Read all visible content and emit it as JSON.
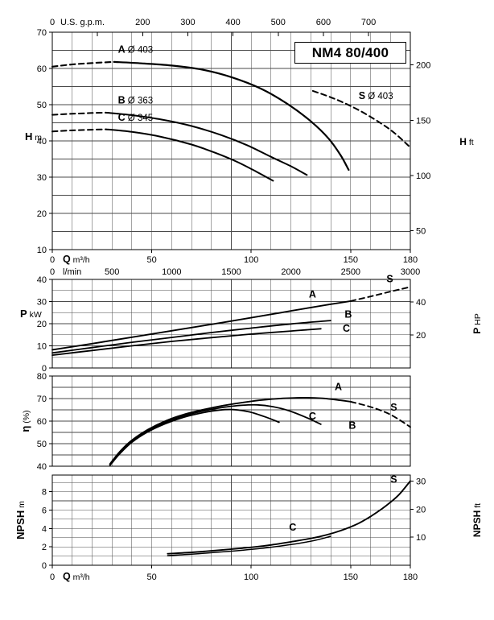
{
  "title": "NM4 80/400",
  "chart_data": [
    {
      "id": "head",
      "type": "line",
      "title": "NM4 80/400",
      "x_axis": {
        "label": "Q",
        "unit": "m³/h",
        "min": 0,
        "max": 180,
        "grid_step": 10,
        "tick_labels": [
          0,
          50,
          100,
          150,
          180
        ]
      },
      "x_axis_secondary": {
        "unit": "l/min",
        "per_unit": 0.06,
        "ticks": [
          0,
          500,
          1000,
          1500,
          2000,
          2500,
          3000
        ]
      },
      "x_axis_top": {
        "unit": "U.S. g.p.m.",
        "per_unit": 0.227125,
        "ticks": [
          0,
          100,
          200,
          300,
          400,
          500,
          600,
          700
        ],
        "labeled": [
          0,
          200,
          300,
          400,
          500,
          600,
          700
        ]
      },
      "y_axis": {
        "label": "H",
        "unit": "m",
        "min": 10,
        "max": 70,
        "grid_step": 5,
        "tick_labels": [
          10,
          20,
          30,
          40,
          50,
          60,
          70
        ]
      },
      "y_axis_right": {
        "label": "H",
        "unit": "ft",
        "per_unit": 0.3048,
        "ticks": [
          50,
          100,
          150,
          200
        ]
      },
      "series": [
        {
          "name": "A-dashed-lead",
          "dash": true,
          "width": 2.1,
          "points": [
            [
              0,
              60.5
            ],
            [
              10,
              61.1
            ],
            [
              20,
              61.5
            ],
            [
              31,
              61.8
            ]
          ]
        },
        {
          "name": "A",
          "dash": false,
          "width": 2.2,
          "points": [
            [
              31,
              61.8
            ],
            [
              45,
              61.4
            ],
            [
              60,
              60.8
            ],
            [
              75,
              59.7
            ],
            [
              90,
              57.6
            ],
            [
              105,
              54.4
            ],
            [
              118,
              50.3
            ],
            [
              130,
              45.4
            ],
            [
              139,
              40.6
            ],
            [
              145,
              36
            ],
            [
              149,
              32
            ]
          ]
        },
        {
          "name": "B-dashed-lead",
          "dash": true,
          "width": 2,
          "points": [
            [
              0,
              47.2
            ],
            [
              10,
              47.5
            ],
            [
              20,
              47.7
            ],
            [
              27,
              47.8
            ]
          ]
        },
        {
          "name": "B",
          "dash": false,
          "width": 2,
          "points": [
            [
              27,
              47.8
            ],
            [
              40,
              47.1
            ],
            [
              55,
              45.9
            ],
            [
              70,
              44.1
            ],
            [
              85,
              41.6
            ],
            [
              98,
              38.8
            ],
            [
              110,
              35.6
            ],
            [
              120,
              33
            ],
            [
              128,
              30.6
            ]
          ]
        },
        {
          "name": "C-dashed-lead",
          "dash": true,
          "width": 2,
          "points": [
            [
              0,
              42.6
            ],
            [
              10,
              42.9
            ],
            [
              20,
              43.1
            ],
            [
              27,
              43.2
            ]
          ]
        },
        {
          "name": "C",
          "dash": false,
          "width": 2,
          "points": [
            [
              27,
              43.2
            ],
            [
              40,
              42.5
            ],
            [
              55,
              41.1
            ],
            [
              70,
              39
            ],
            [
              82,
              36.7
            ],
            [
              93,
              34.2
            ],
            [
              103,
              31.4
            ],
            [
              111,
              29
            ]
          ]
        },
        {
          "name": "S-dashed",
          "dash": true,
          "width": 2,
          "points": [
            [
              131,
              53.8
            ],
            [
              142,
              51.6
            ],
            [
              153,
              48.8
            ],
            [
              164,
              45.3
            ],
            [
              172,
              42.2
            ],
            [
              180,
              38.2
            ]
          ]
        }
      ],
      "annotations": [
        {
          "prefix": "A",
          "text": " Ø 403",
          "q": 33,
          "v": 64.3
        },
        {
          "prefix": "B",
          "text": " Ø 363",
          "q": 33,
          "v": 50.3
        },
        {
          "prefix": "C",
          "text": " Ø 345",
          "q": 33,
          "v": 45.6
        },
        {
          "prefix": "S",
          "text": " Ø 403",
          "q": 154,
          "v": 51.6
        }
      ]
    },
    {
      "id": "power",
      "type": "line",
      "x_axis": {
        "min": 0,
        "max": 180,
        "grid_step": 10
      },
      "y_axis": {
        "label": "P",
        "unit": "kW",
        "min": 0,
        "max": 40,
        "grid_step": 5,
        "tick_labels": [
          0,
          10,
          20,
          30,
          40
        ]
      },
      "y_axis_right": {
        "label": "P",
        "unit": "HP",
        "per_unit": 0.7457,
        "ticks": [
          20,
          40
        ]
      },
      "series": [
        {
          "name": "A",
          "dash": false,
          "width": 1.9,
          "points": [
            [
              0,
              8.2
            ],
            [
              20,
              11
            ],
            [
              40,
              13.9
            ],
            [
              60,
              16.8
            ],
            [
              80,
              19.7
            ],
            [
              100,
              22.7
            ],
            [
              115,
              25
            ],
            [
              130,
              27.3
            ],
            [
              140,
              28.8
            ],
            [
              150,
              30.2
            ]
          ]
        },
        {
          "name": "S-dashed",
          "dash": true,
          "width": 1.9,
          "points": [
            [
              150,
              30.2
            ],
            [
              160,
              32.3
            ],
            [
              170,
              34.5
            ],
            [
              180,
              36.6
            ]
          ]
        },
        {
          "name": "B",
          "dash": false,
          "width": 1.8,
          "points": [
            [
              0,
              6.8
            ],
            [
              20,
              9.2
            ],
            [
              40,
              11.6
            ],
            [
              60,
              13.8
            ],
            [
              80,
              16
            ],
            [
              100,
              18
            ],
            [
              120,
              19.9
            ],
            [
              140,
              21.4
            ]
          ]
        },
        {
          "name": "C",
          "dash": false,
          "width": 1.8,
          "points": [
            [
              0,
              5.8
            ],
            [
              20,
              7.9
            ],
            [
              40,
              10
            ],
            [
              60,
              12
            ],
            [
              80,
              13.7
            ],
            [
              100,
              15.3
            ],
            [
              120,
              16.7
            ],
            [
              135,
              17.7
            ]
          ]
        }
      ],
      "annotations": [
        {
          "prefix": "A",
          "text": "",
          "q": 129,
          "v": 31.8
        },
        {
          "prefix": "B",
          "text": "",
          "q": 147,
          "v": 22.8
        },
        {
          "prefix": "C",
          "text": "",
          "q": 146,
          "v": 16.3
        },
        {
          "prefix": "S",
          "text": "",
          "q": 168,
          "v": 38.8
        }
      ]
    },
    {
      "id": "eff",
      "type": "line",
      "x_axis": {
        "min": 0,
        "max": 180,
        "grid_step": 10
      },
      "y_axis": {
        "label": "η",
        "unit": "(%)",
        "min": 40,
        "max": 80,
        "grid_step": 5,
        "tick_labels": [
          40,
          50,
          60,
          70,
          80
        ]
      },
      "series": [
        {
          "name": "A",
          "dash": false,
          "width": 1.9,
          "points": [
            [
              29,
              41
            ],
            [
              34,
              46.5
            ],
            [
              40,
              51.5
            ],
            [
              48,
              56.2
            ],
            [
              57,
              60.1
            ],
            [
              66,
              62.9
            ],
            [
              76,
              65.1
            ],
            [
              86,
              66.9
            ],
            [
              96,
              68.3
            ],
            [
              106,
              69.4
            ],
            [
              116,
              70.1
            ],
            [
              126,
              70.4
            ],
            [
              136,
              70.1
            ],
            [
              145,
              69.2
            ],
            [
              150,
              68.6
            ]
          ]
        },
        {
          "name": "S-dashed",
          "dash": true,
          "width": 1.9,
          "points": [
            [
              150,
              68.6
            ],
            [
              160,
              66.3
            ],
            [
              170,
              62.9
            ],
            [
              180,
              57.4
            ]
          ]
        },
        {
          "name": "B",
          "dash": false,
          "width": 1.8,
          "points": [
            [
              29,
              40.7
            ],
            [
              34,
              46
            ],
            [
              40,
              51
            ],
            [
              48,
              55.7
            ],
            [
              57,
              59.5
            ],
            [
              66,
              62.3
            ],
            [
              76,
              64.5
            ],
            [
              86,
              66.1
            ],
            [
              95,
              67
            ],
            [
              103,
              67.2
            ],
            [
              111,
              66.4
            ],
            [
              119,
              64.6
            ],
            [
              128,
              61.5
            ],
            [
              135,
              58.6
            ]
          ]
        },
        {
          "name": "C",
          "dash": false,
          "width": 1.8,
          "points": [
            [
              29,
              40.4
            ],
            [
              34,
              45.6
            ],
            [
              40,
              50.6
            ],
            [
              48,
              55.2
            ],
            [
              57,
              58.9
            ],
            [
              66,
              61.7
            ],
            [
              76,
              63.8
            ],
            [
              84,
              64.9
            ],
            [
              91,
              65.1
            ],
            [
              99,
              64.1
            ],
            [
              107,
              61.9
            ],
            [
              114,
              59.5
            ]
          ]
        }
      ],
      "annotations": [
        {
          "prefix": "A",
          "text": "",
          "q": 142,
          "v": 73.8
        },
        {
          "prefix": "C",
          "text": "",
          "q": 129,
          "v": 60.8
        },
        {
          "prefix": "B",
          "text": "",
          "q": 149,
          "v": 56.6
        },
        {
          "prefix": "S",
          "text": "",
          "q": 170,
          "v": 64.6
        }
      ]
    },
    {
      "id": "npsh",
      "type": "line",
      "x_axis": {
        "label": "Q",
        "unit": "m³/h",
        "min": 0,
        "max": 180,
        "grid_step": 10,
        "tick_labels": [
          0,
          50,
          100,
          150,
          180
        ]
      },
      "y_axis": {
        "label": "NPSH",
        "unit": "m",
        "min": 0,
        "max": 9.8,
        "grid_step": 1,
        "tick_labels": [
          0,
          2,
          4,
          6,
          8
        ]
      },
      "y_axis_right": {
        "label": "NPSH",
        "unit": "ft",
        "per_unit": 0.3048,
        "ticks": [
          10,
          20,
          30
        ]
      },
      "series": [
        {
          "name": "C-S",
          "dash": false,
          "width": 1.9,
          "points": [
            [
              58,
              1.25
            ],
            [
              70,
              1.4
            ],
            [
              82,
              1.6
            ],
            [
              95,
              1.85
            ],
            [
              108,
              2.15
            ],
            [
              120,
              2.55
            ],
            [
              132,
              3
            ],
            [
              142,
              3.55
            ],
            [
              152,
              4.35
            ],
            [
              160,
              5.3
            ],
            [
              168,
              6.5
            ],
            [
              174,
              7.6
            ],
            [
              180,
              9.15
            ]
          ]
        },
        {
          "name": "C-lower",
          "dash": false,
          "width": 1.5,
          "points": [
            [
              58,
              1.05
            ],
            [
              70,
              1.2
            ],
            [
              82,
              1.4
            ],
            [
              95,
              1.62
            ],
            [
              108,
              1.9
            ],
            [
              120,
              2.25
            ],
            [
              132,
              2.7
            ],
            [
              140,
              3.15
            ]
          ]
        }
      ],
      "annotations": [
        {
          "prefix": "C",
          "text": "",
          "q": 119,
          "v": 3.75
        },
        {
          "prefix": "S",
          "text": "",
          "q": 170,
          "v": 8.95
        }
      ]
    }
  ]
}
